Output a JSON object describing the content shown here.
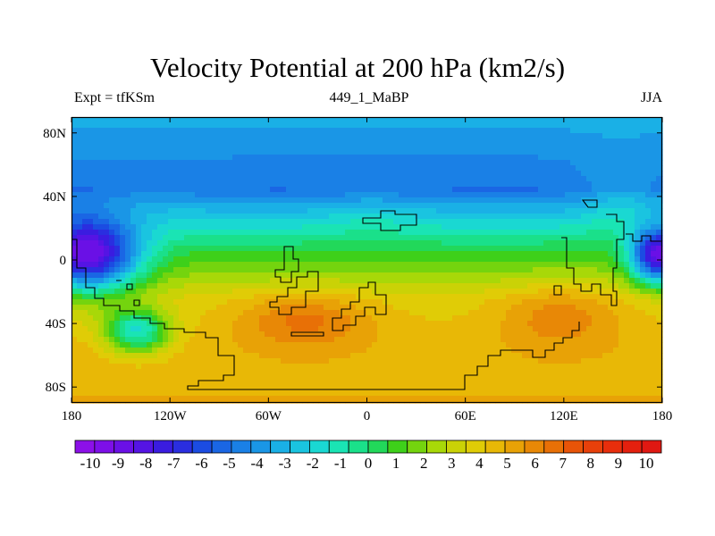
{
  "chart_data": {
    "type": "heatmap",
    "title": "Velocity Potential at 200 hPa (km2/s)",
    "subtitle_left": "Expt = tfKSm",
    "subtitle_center": "449_1_MaBP",
    "subtitle_right": "JJA",
    "x_range": [
      -180,
      180
    ],
    "y_range": [
      -90,
      90
    ],
    "x_ticks": [
      {
        "value": -180,
        "label": "180"
      },
      {
        "value": -120,
        "label": "120W"
      },
      {
        "value": -60,
        "label": "60W"
      },
      {
        "value": 0,
        "label": "0"
      },
      {
        "value": 60,
        "label": "60E"
      },
      {
        "value": 120,
        "label": "120E"
      },
      {
        "value": 180,
        "label": "180"
      }
    ],
    "y_ticks": [
      {
        "value": 80,
        "label": "80N"
      },
      {
        "value": 40,
        "label": "40N"
      },
      {
        "value": 0,
        "label": "0"
      },
      {
        "value": -40,
        "label": "40S"
      },
      {
        "value": -80,
        "label": "80S"
      }
    ],
    "colorbar": {
      "min": -10.5,
      "max": 10.5,
      "labels": [
        "-10",
        "-9",
        "-8",
        "-7",
        "-6",
        "-5",
        "-4",
        "-3",
        "-2",
        "-1",
        "0",
        "1",
        "2",
        "3",
        "4",
        "5",
        "6",
        "7",
        "8",
        "9",
        "10"
      ],
      "colors": [
        "#8c10e8",
        "#7d0fe8",
        "#6a10e6",
        "#5514e4",
        "#3a1ce0",
        "#2a2ee0",
        "#1b4ce2",
        "#1a66e4",
        "#1a80e6",
        "#1a96e6",
        "#1ab0e6",
        "#1ac4e0",
        "#1ad8d2",
        "#1ae4b4",
        "#1ae08a",
        "#22d85a",
        "#3ed01a",
        "#74d40e",
        "#a8d808",
        "#cad206",
        "#e0cc06",
        "#e8b806",
        "#e8a206",
        "#e88806",
        "#e87006",
        "#e85408",
        "#e8400a",
        "#e82e0c",
        "#e4200e",
        "#e01812"
      ]
    },
    "field_features": [
      {
        "type": "low",
        "lon": -170,
        "lat": 2,
        "value": -9.0,
        "sx": 22,
        "sy": 16
      },
      {
        "type": "low",
        "lon": 178,
        "lat": 2,
        "value": -9.0,
        "sx": 12,
        "sy": 12
      },
      {
        "type": "low",
        "lon": -142,
        "lat": 38,
        "value": -3.5,
        "sx": 32,
        "sy": 14
      },
      {
        "type": "low",
        "lon": 155,
        "lat": 40,
        "value": -3.0,
        "sx": 18,
        "sy": 20
      },
      {
        "type": "low",
        "lon": 3,
        "lat": 28,
        "value": -1.8,
        "sx": 22,
        "sy": 10
      },
      {
        "type": "high",
        "lon": -38,
        "lat": -38,
        "value": 6.5,
        "sx": 28,
        "sy": 12
      },
      {
        "type": "high",
        "lon": 118,
        "lat": -35,
        "value": 6.0,
        "sx": 26,
        "sy": 14
      },
      {
        "type": "high",
        "lon": -140,
        "lat": -45,
        "value": -1.5,
        "sx": 14,
        "sy": 10
      }
    ]
  }
}
